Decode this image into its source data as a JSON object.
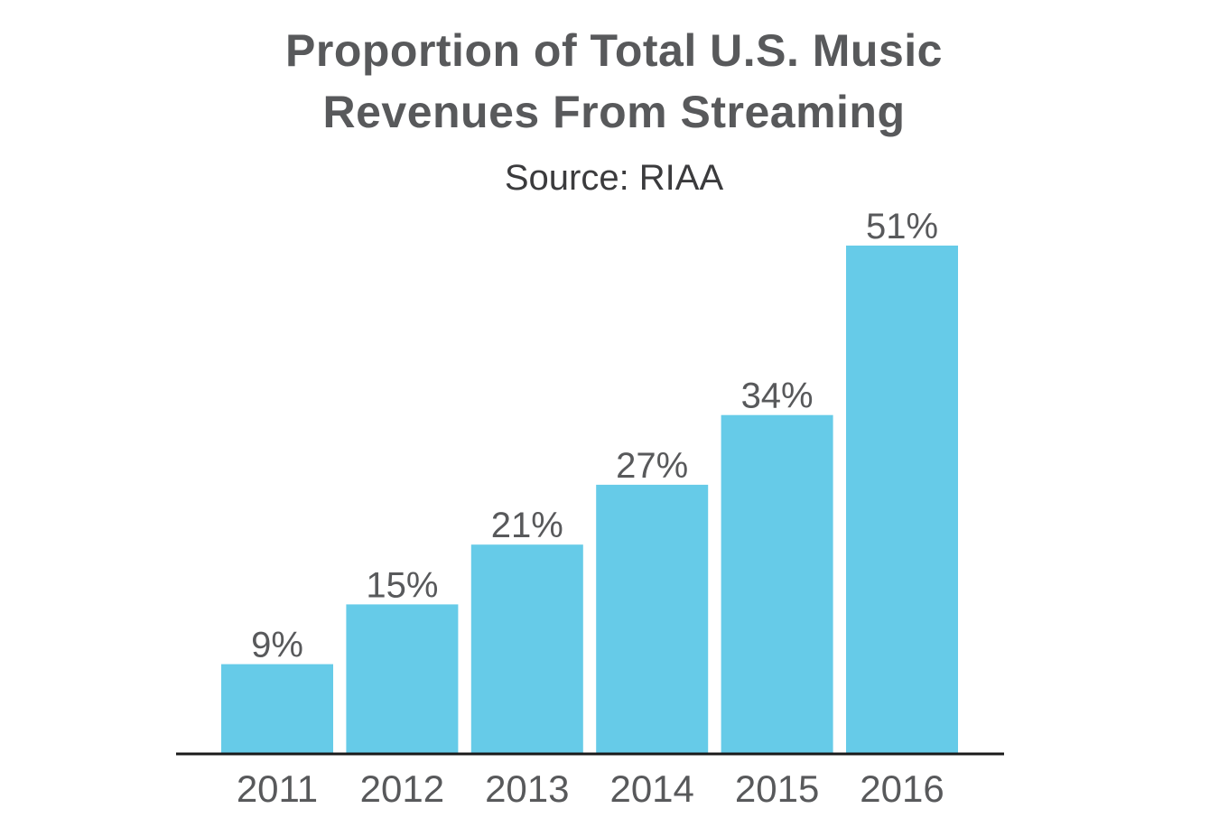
{
  "chart_data": {
    "type": "bar",
    "title": "Proportion of Total U.S. Music Revenues From Streaming",
    "title_lines": [
      "Proportion of Total U.S. Music",
      "Revenues From Streaming"
    ],
    "subtitle": "Source: RIAA",
    "categories": [
      "2011",
      "2012",
      "2013",
      "2014",
      "2015",
      "2016"
    ],
    "values": [
      9,
      15,
      21,
      27,
      34,
      51
    ],
    "data_labels": [
      "9%",
      "15%",
      "21%",
      "27%",
      "34%",
      "51%"
    ],
    "xlabel": "",
    "ylabel": "",
    "ylim": [
      0,
      51
    ],
    "grid": false,
    "legend": "none",
    "bar_color": "#66cbe8",
    "axis_color": "#1a1a1a",
    "text_color": "#58595b"
  }
}
